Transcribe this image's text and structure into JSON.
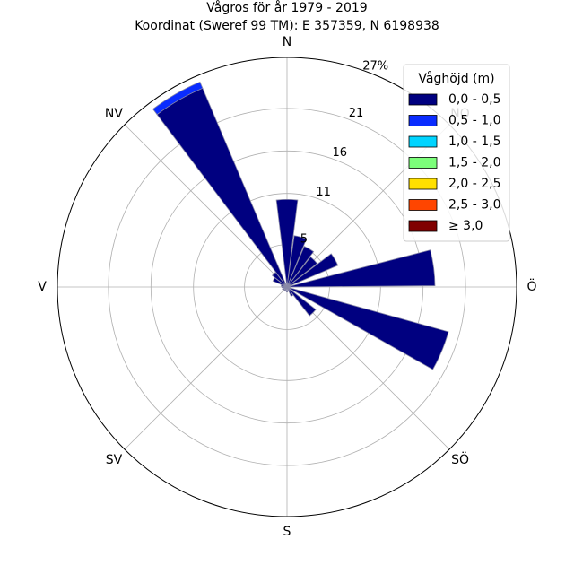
{
  "chart_data": {
    "type": "polar-bar",
    "title": "Vågros för år 1979 - 2019",
    "subtitle": "Koordinat (Sweref 99 TM): E 357359, N 6198938",
    "radial_unit": "%",
    "radial_max": 27,
    "radial_ticks": [
      {
        "value": 5,
        "label": "5"
      },
      {
        "value": 11,
        "label": "11"
      },
      {
        "value": 16,
        "label": "16"
      },
      {
        "value": 21,
        "label": "21"
      },
      {
        "value": 27,
        "label": "27%"
      }
    ],
    "directions": [
      {
        "label": "N",
        "angle": 0
      },
      {
        "label": "NV",
        "angle": 315
      },
      {
        "label": "V",
        "angle": 270
      },
      {
        "label": "SV",
        "angle": 225
      },
      {
        "label": "S",
        "angle": 180
      },
      {
        "label": "SÖ",
        "angle": 135
      },
      {
        "label": "Ö",
        "angle": 90
      },
      {
        "label": "NO",
        "angle": 45
      }
    ],
    "legend": {
      "title": "Våghöjd (m)",
      "placement": "top-right",
      "entries": [
        {
          "label": "0,0 - 0,5",
          "color": "#000080"
        },
        {
          "label": "0,5 - 1,0",
          "color": "#0a2cff"
        },
        {
          "label": "1,0 - 1,5",
          "color": "#00d4ff"
        },
        {
          "label": "1,5 - 2,0",
          "color": "#7cff7a"
        },
        {
          "label": "2,0 - 2,5",
          "color": "#ffe000"
        },
        {
          "label": "2,5 - 3,0",
          "color": "#ff4500"
        },
        {
          "label": "≥ 3,0",
          "color": "#800000"
        }
      ]
    },
    "sector_width_deg": 14,
    "sectors": [
      {
        "angle": 0,
        "values": [
          10.3,
          0,
          0,
          0,
          0,
          0,
          0
        ]
      },
      {
        "angle": 15,
        "values": [
          6.1,
          0,
          0,
          0,
          0,
          0,
          0
        ]
      },
      {
        "angle": 30,
        "values": [
          5.2,
          0,
          0,
          0,
          0,
          0,
          0
        ]
      },
      {
        "angle": 45,
        "values": [
          4.5,
          0,
          0,
          0,
          0,
          0,
          0
        ]
      },
      {
        "angle": 60,
        "values": [
          6.5,
          0,
          0,
          0,
          0,
          0,
          0
        ]
      },
      {
        "angle": 82.5,
        "values": [
          17.4,
          0,
          0,
          0,
          0,
          0,
          0
        ]
      },
      {
        "angle": 112.5,
        "values": [
          19.7,
          0,
          0,
          0,
          0,
          0,
          0
        ]
      },
      {
        "angle": 135,
        "values": [
          4.3,
          0,
          0,
          0,
          0,
          0,
          0
        ]
      },
      {
        "angle": 150,
        "values": [
          1.2,
          0,
          0,
          0,
          0,
          0,
          0
        ]
      },
      {
        "angle": 180,
        "values": [
          0.6,
          0,
          0,
          0,
          0,
          0,
          0
        ]
      },
      {
        "angle": 210,
        "values": [
          0.5,
          0,
          0,
          0,
          0,
          0,
          0
        ]
      },
      {
        "angle": 240,
        "values": [
          0.6,
          0,
          0,
          0,
          0,
          0,
          0
        ]
      },
      {
        "angle": 270,
        "values": [
          0.6,
          0,
          0,
          0,
          0,
          0,
          0
        ]
      },
      {
        "angle": 285,
        "values": [
          0.7,
          0,
          0,
          0,
          0,
          0,
          0
        ]
      },
      {
        "angle": 300,
        "values": [
          1.8,
          0,
          0,
          0,
          0,
          0,
          0
        ]
      },
      {
        "angle": 315,
        "values": [
          2.2,
          0,
          0,
          0,
          0,
          0,
          0
        ]
      },
      {
        "angle": 330,
        "values": [
          25.4,
          0.8,
          0,
          0,
          0,
          0,
          0
        ]
      }
    ]
  }
}
